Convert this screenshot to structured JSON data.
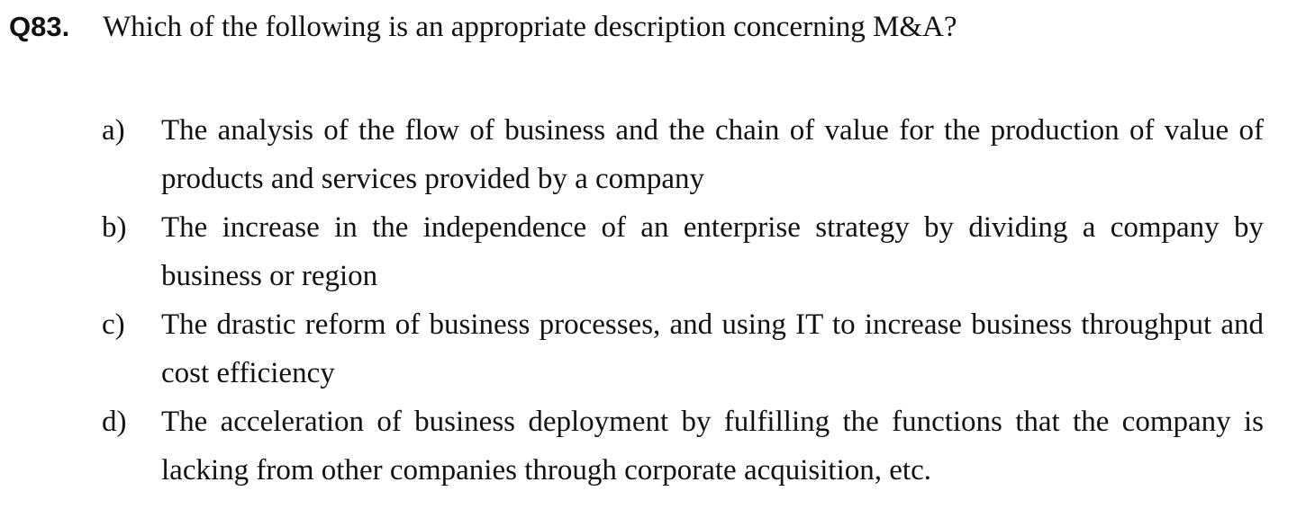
{
  "question": {
    "number": "Q83.",
    "text": "Which of the following is an appropriate description concerning M&A?"
  },
  "options": [
    {
      "label": "a)",
      "text": "The analysis of the flow of business and the chain of value for the production of value of products and services provided by a company"
    },
    {
      "label": "b)",
      "text": "The increase in the independence of an enterprise strategy by dividing a company by business or region"
    },
    {
      "label": "c)",
      "text": "The drastic reform of business processes, and using IT to increase business throughput and cost efficiency"
    },
    {
      "label": "d)",
      "text": "The acceleration of business deployment by fulfilling the functions that the company is lacking from other companies through corporate acquisition, etc."
    }
  ]
}
